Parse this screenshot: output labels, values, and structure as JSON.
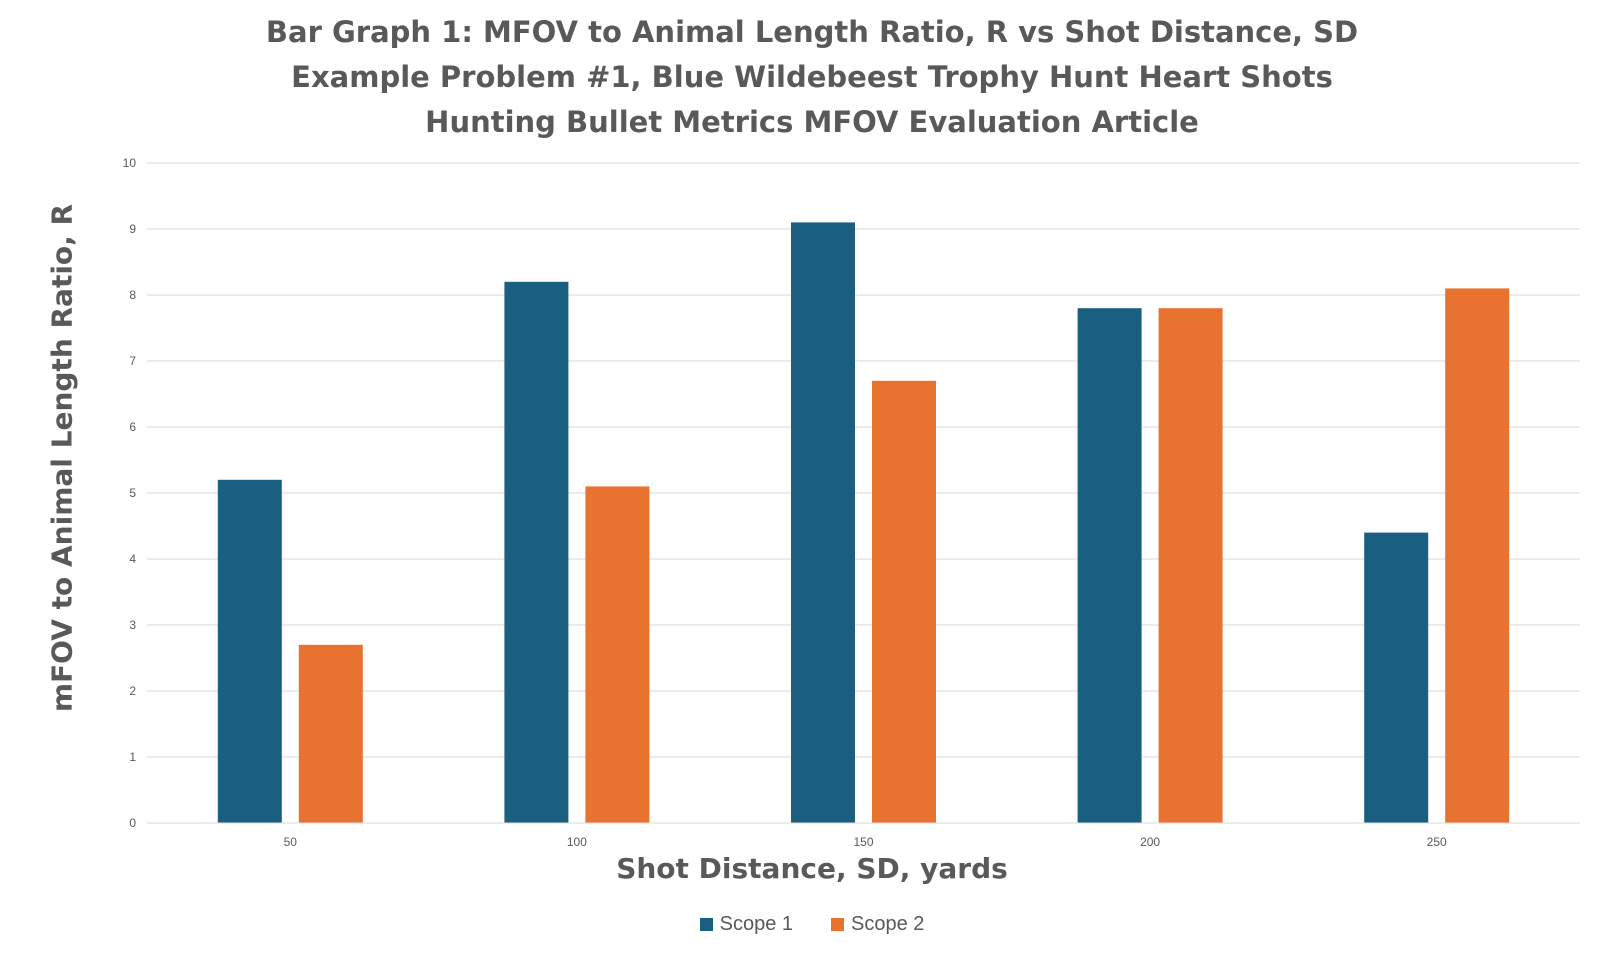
{
  "chart_data": {
    "type": "bar",
    "title_lines": [
      "Bar Graph 1: MFOV to Animal Length Ratio, R vs Shot Distance, SD",
      "Example Problem #1, Blue Wildebeest Trophy Hunt Heart Shots",
      "Hunting Bullet Metrics MFOV Evaluation Article"
    ],
    "xlabel": "Shot Distance, SD, yards",
    "ylabel": "mFOV to Animal Length Ratio, R",
    "categories": [
      "50",
      "100",
      "150",
      "200",
      "250"
    ],
    "series": [
      {
        "name": "Scope 1",
        "color": "#1a5f80",
        "values": [
          5.2,
          8.2,
          9.1,
          7.8,
          4.4
        ]
      },
      {
        "name": "Scope 2",
        "color": "#e87331",
        "values": [
          2.7,
          5.1,
          6.7,
          7.8,
          8.1
        ]
      }
    ],
    "ylim": [
      0,
      10
    ],
    "yticks": [
      "0",
      "1",
      "2",
      "3",
      "4",
      "5",
      "6",
      "7",
      "8",
      "9",
      "10"
    ],
    "grid": true,
    "legend_position": "bottom"
  }
}
